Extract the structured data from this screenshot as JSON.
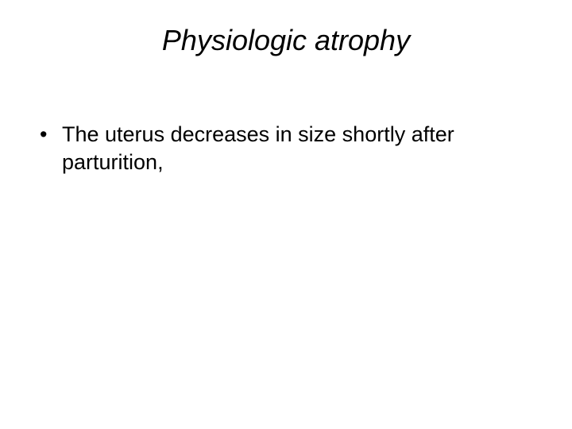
{
  "slide": {
    "title": "Physiologic atrophy",
    "bullets": [
      "The uterus decreases in size shortly after parturition,"
    ],
    "styling": {
      "background_color": "#ffffff",
      "text_color": "#000000",
      "title_fontsize": 36,
      "title_fontstyle": "italic",
      "body_fontsize": 27,
      "font_family": "Arial"
    }
  }
}
